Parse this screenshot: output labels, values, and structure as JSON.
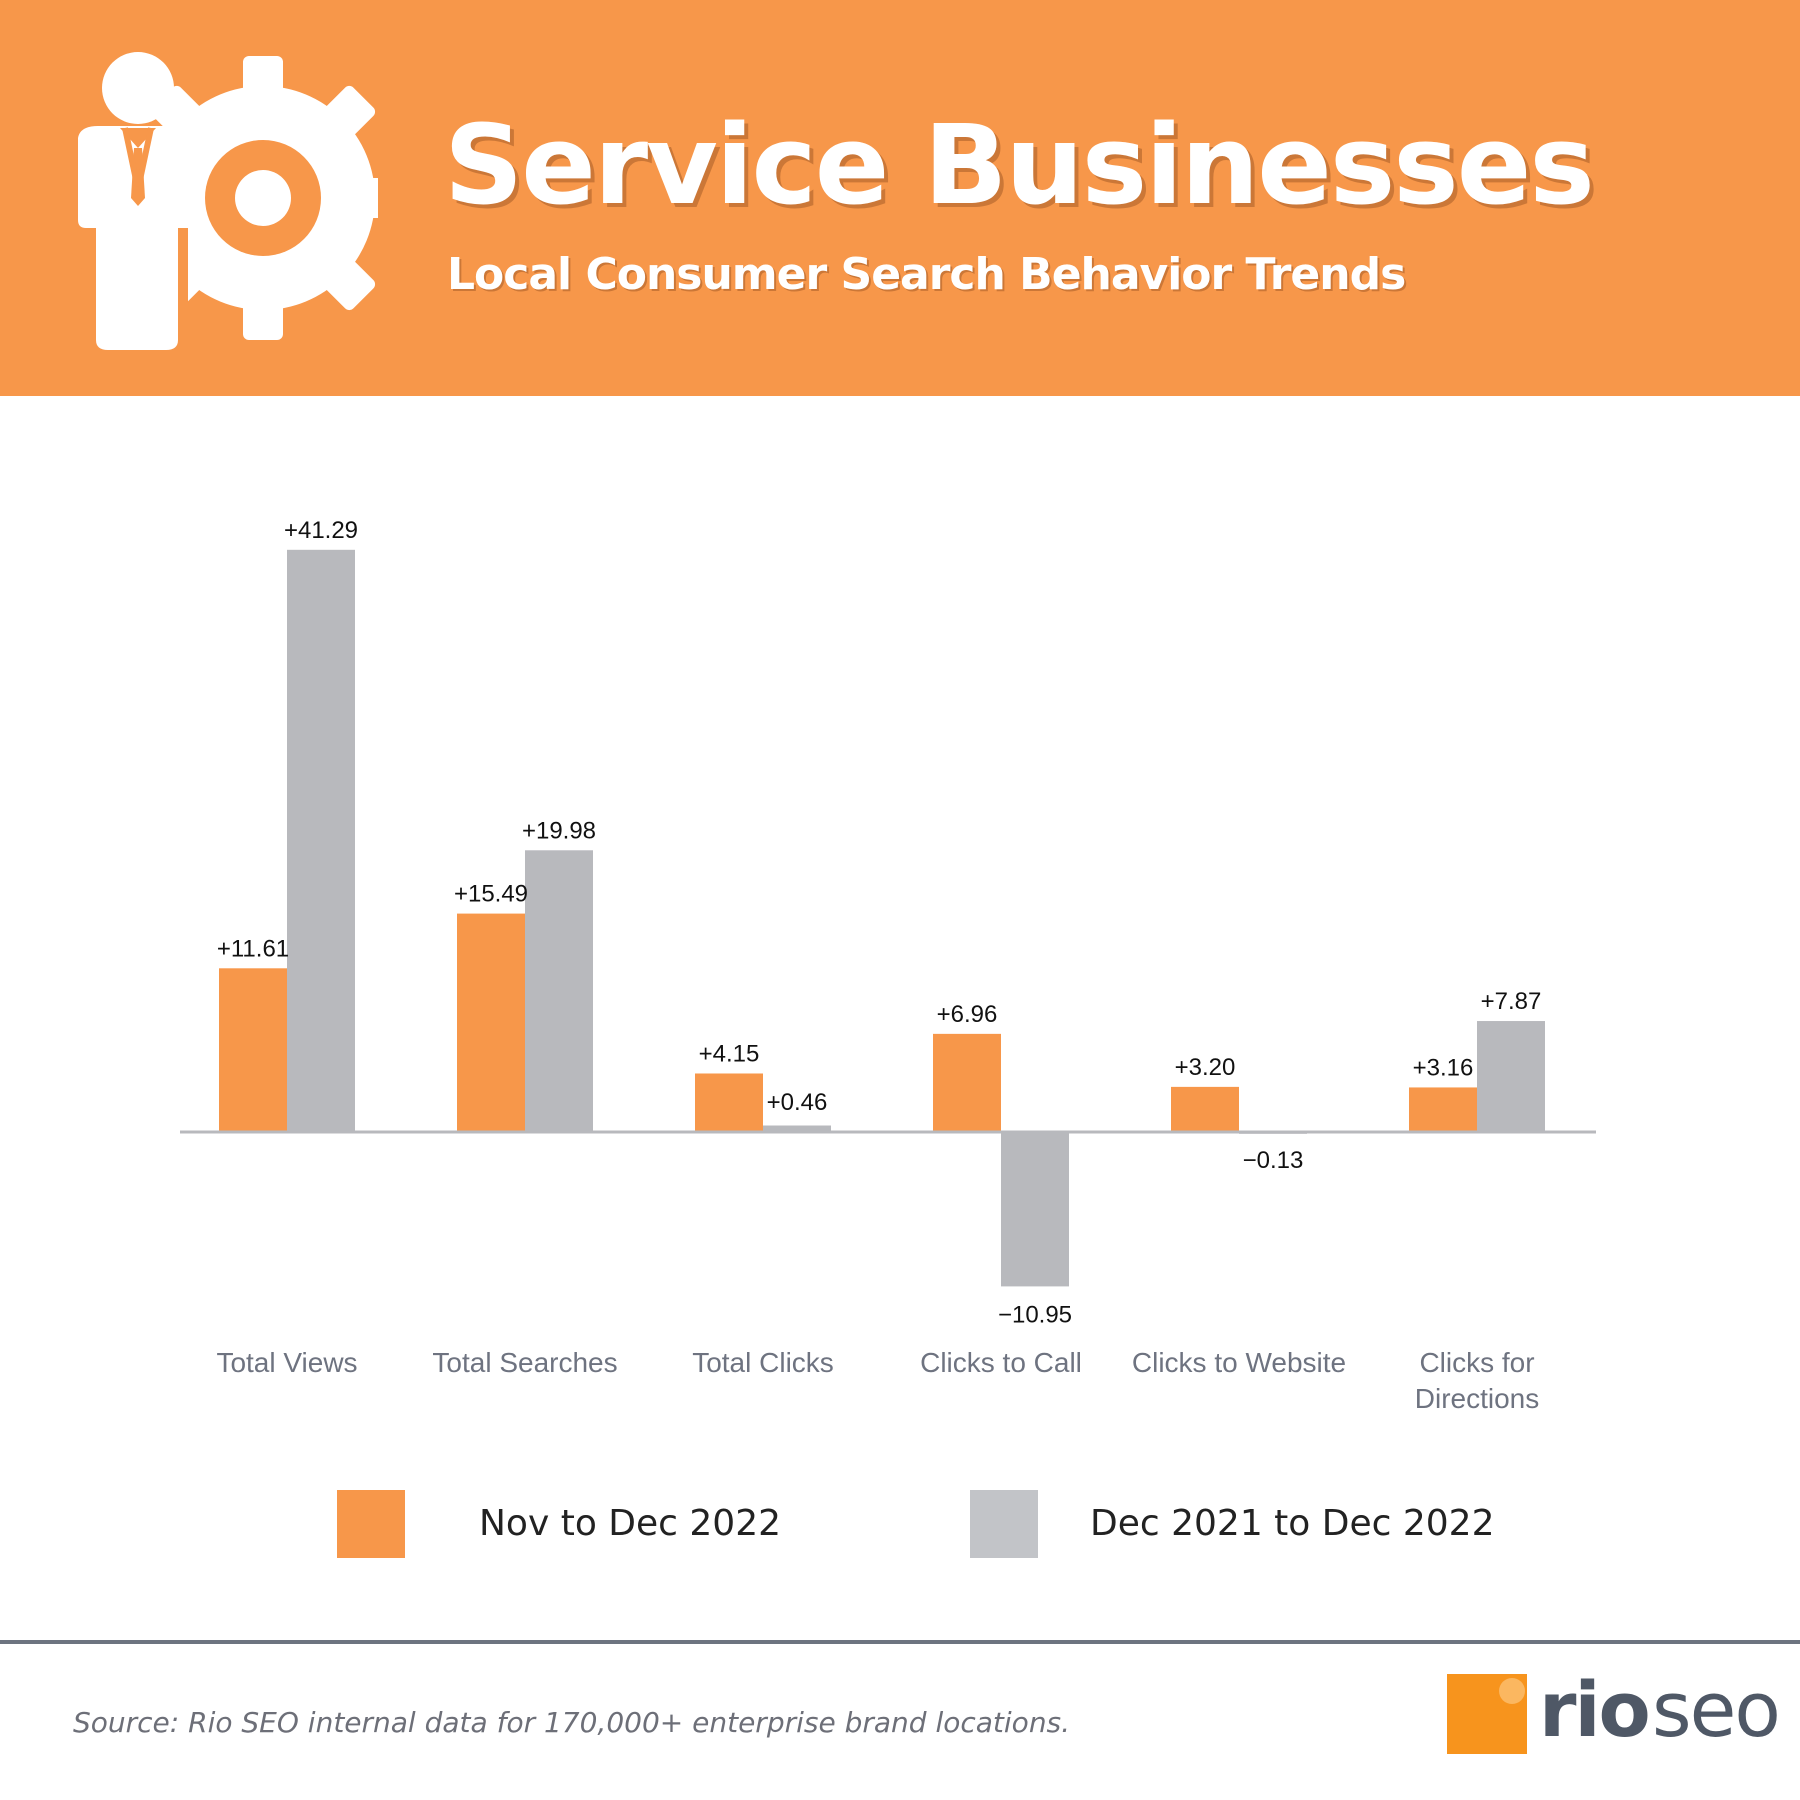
{
  "header": {
    "title": "Service Businesses",
    "subtitle": "Local Consumer Search Behavior Trends",
    "icon": "businessman-gear-icon",
    "background_color": "#f7974a"
  },
  "chart_data": {
    "type": "bar",
    "categories": [
      "Total Views",
      "Total Searches",
      "Total Clicks",
      "Clicks to Call",
      "Clicks to Website",
      "Clicks for Directions"
    ],
    "category_lines": [
      [
        "Total Views"
      ],
      [
        "Total Searches"
      ],
      [
        "Total Clicks"
      ],
      [
        "Clicks to Call"
      ],
      [
        "Clicks to Website"
      ],
      [
        "Clicks for",
        "Directions"
      ]
    ],
    "series": [
      {
        "name": "Nov to Dec 2022",
        "color": "#f7974a",
        "values": [
          11.61,
          15.49,
          4.15,
          6.96,
          3.2,
          3.16
        ],
        "labels": [
          "+11.61",
          "+15.49",
          "+4.15",
          "+6.96",
          "+3.20",
          "+3.16"
        ]
      },
      {
        "name": "Dec 2021 to Dec 2022",
        "color": "#b8b9bd",
        "values": [
          41.29,
          19.98,
          0.46,
          -10.95,
          -0.13,
          7.87
        ],
        "labels": [
          "+41.29",
          "+19.98",
          "+0.46",
          "−10.95",
          "−0.13",
          "+7.87"
        ]
      }
    ],
    "axis_color": "#b8b9bd",
    "ylim": [
      -12,
      42
    ],
    "grid": false,
    "legend_position": "bottom"
  },
  "legend": {
    "items": [
      {
        "label": "Nov to Dec 2022",
        "color": "#f7974a"
      },
      {
        "label": "Dec 2021 to Dec 2022",
        "color": "#c2c4c8"
      }
    ]
  },
  "footer": {
    "source": "Source: Rio SEO internal data for 170,000+ enterprise brand locations.",
    "logo": {
      "part1": "rio",
      "part2": "seo",
      "mark_color": "#f7941d"
    }
  }
}
